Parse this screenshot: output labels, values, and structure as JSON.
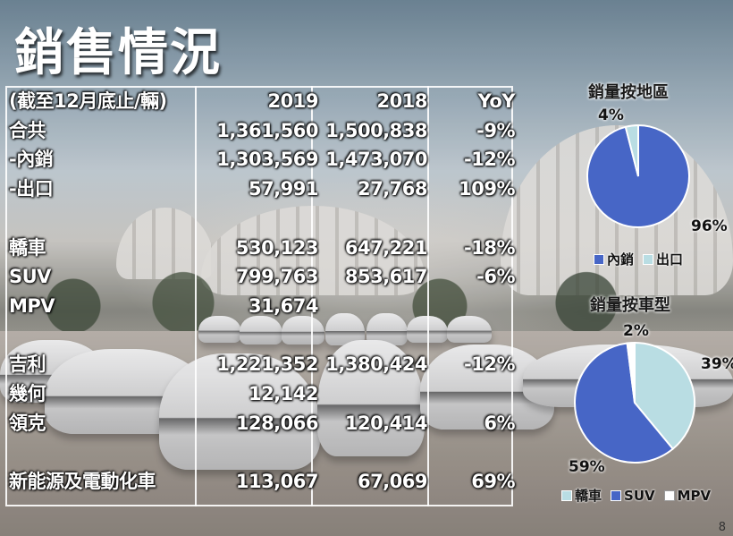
{
  "slide": {
    "title": "銷售情況",
    "page_number": "8"
  },
  "table": {
    "headers": [
      "(截至12月底止/輛)",
      "2019",
      "2018",
      "YoY"
    ],
    "rows": [
      [
        "合共",
        "1,361,560",
        "1,500,838",
        "-9%"
      ],
      [
        " -內銷",
        "1,303,569",
        "1,473,070",
        "-12%"
      ],
      [
        " -出口",
        "57,991",
        "27,768",
        "109%"
      ],
      [
        "",
        "",
        "",
        ""
      ],
      [
        "轎車",
        "530,123",
        "647,221",
        "-18%"
      ],
      [
        "SUV",
        "799,763",
        "853,617",
        "-6%"
      ],
      [
        "MPV",
        "31,674",
        "",
        ""
      ],
      [
        "",
        "",
        "",
        ""
      ],
      [
        "吉利",
        "1,221,352",
        "1,380,424",
        "-12%"
      ],
      [
        "幾何",
        "12,142",
        "",
        ""
      ],
      [
        "領克",
        "128,066",
        "120,414",
        "6%"
      ],
      [
        "",
        "",
        "",
        ""
      ],
      [
        "新能源及電動化車",
        "113,067",
        "67,069",
        "69%"
      ]
    ]
  },
  "chart_data": [
    {
      "type": "pie",
      "title": "銷量按地區",
      "categories": [
        "內銷",
        "出口"
      ],
      "values": [
        96,
        4
      ],
      "labels": [
        "96%",
        "4%"
      ],
      "colors": [
        "#4766c6",
        "#b9dde3"
      ],
      "legend_position": "bottom"
    },
    {
      "type": "pie",
      "title": "銷量按車型",
      "categories": [
        "轎車",
        "SUV",
        "MPV"
      ],
      "values": [
        39,
        59,
        2
      ],
      "labels": [
        "39%",
        "59%",
        "2%"
      ],
      "colors": [
        "#b9dde3",
        "#4766c6",
        "#ffffff"
      ],
      "legend_position": "bottom"
    }
  ]
}
